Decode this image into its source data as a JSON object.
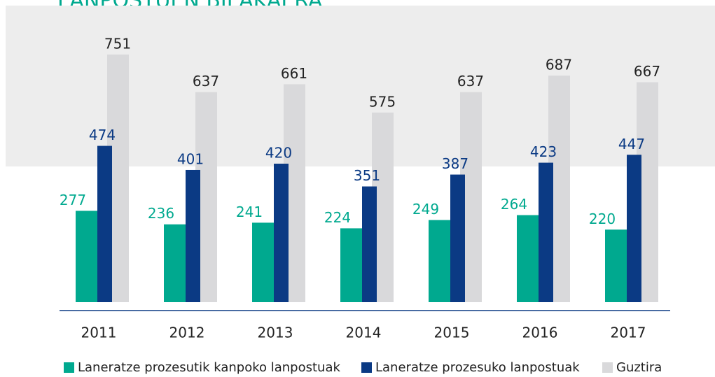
{
  "chart_data": {
    "type": "bar",
    "title": "LANPOSTUEN BILAKAERA",
    "categories": [
      "2011",
      "2012",
      "2013",
      "2014",
      "2015",
      "2016",
      "2017"
    ],
    "series": [
      {
        "name": "Laneratze prozesutik kanpoko lanpostuak",
        "color": "#00a98f",
        "values": [
          277,
          236,
          241,
          224,
          249,
          264,
          220
        ]
      },
      {
        "name": "Laneratze prozesuko lanpostuak",
        "color": "#0b3a84",
        "values": [
          474,
          401,
          420,
          351,
          387,
          423,
          447
        ]
      },
      {
        "name": "Guztira",
        "color": "#d9d9db",
        "values": [
          751,
          637,
          661,
          575,
          637,
          687,
          667
        ]
      }
    ]
  }
}
